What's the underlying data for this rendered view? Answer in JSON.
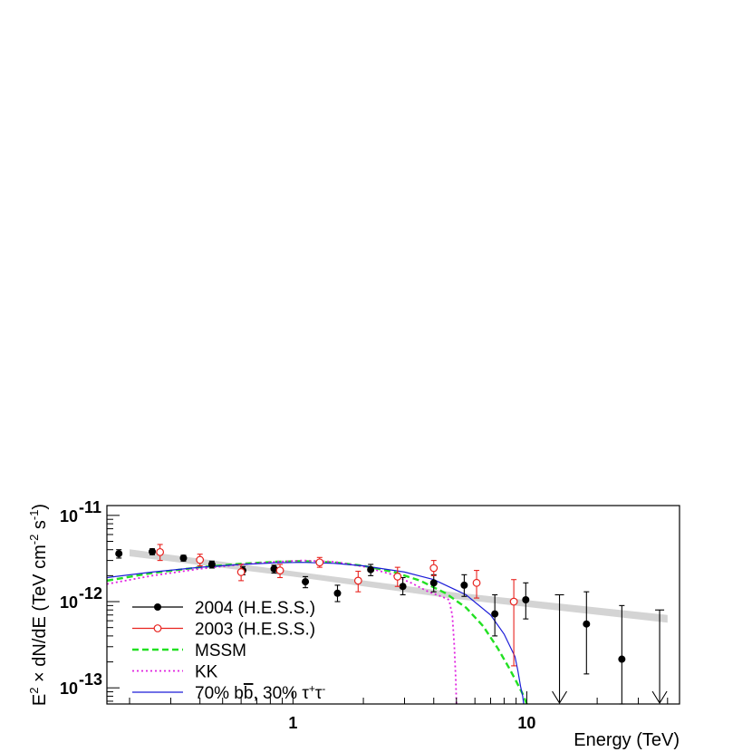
{
  "chart_data": {
    "type": "scatter",
    "title": "",
    "xlabel": "Energy (TeV)",
    "ylabel": "E² × dN/dE (TeV cm⁻² s⁻¹)",
    "xscale": "log",
    "yscale": "log",
    "xlim": [
      0.16,
      45
    ],
    "ylim": [
      6.5e-14,
      1.3e-11
    ],
    "x_tick_labels": [
      {
        "value": 1,
        "label": "1"
      },
      {
        "value": 10,
        "label": "10"
      }
    ],
    "y_tick_labels": [
      {
        "value": 1e-13,
        "base": "10",
        "exp": "-13"
      },
      {
        "value": 1e-12,
        "base": "10",
        "exp": "-12"
      },
      {
        "value": 1e-11,
        "base": "10",
        "exp": "-11"
      }
    ],
    "grid": false,
    "legend_position": "bottom-left",
    "series": [
      {
        "name": "2004 (H.E.S.S.)",
        "kind": "points",
        "color": "#000000",
        "marker": "filled-circle",
        "points": [
          {
            "x": 0.18,
            "y": 3.6e-12,
            "lo": 3.2e-12,
            "hi": 4e-12
          },
          {
            "x": 0.25,
            "y": 3.8e-12,
            "lo": 3.5e-12,
            "hi": 4.1e-12
          },
          {
            "x": 0.34,
            "y": 3.2e-12,
            "lo": 2.95e-12,
            "hi": 3.45e-12
          },
          {
            "x": 0.45,
            "y": 2.7e-12,
            "lo": 2.45e-12,
            "hi": 2.95e-12
          },
          {
            "x": 0.61,
            "y": 2.3e-12,
            "lo": 2.05e-12,
            "hi": 2.55e-12
          },
          {
            "x": 0.83,
            "y": 2.4e-12,
            "lo": 2.15e-12,
            "hi": 2.65e-12
          },
          {
            "x": 1.13,
            "y": 1.7e-12,
            "lo": 1.45e-12,
            "hi": 1.95e-12
          },
          {
            "x": 1.55,
            "y": 1.25e-12,
            "lo": 1e-12,
            "hi": 1.55e-12
          },
          {
            "x": 2.15,
            "y": 2.35e-12,
            "lo": 2e-12,
            "hi": 2.7e-12
          },
          {
            "x": 2.95,
            "y": 1.5e-12,
            "lo": 1.2e-12,
            "hi": 1.9e-12
          },
          {
            "x": 4.0,
            "y": 1.65e-12,
            "lo": 1.3e-12,
            "hi": 2.05e-12
          },
          {
            "x": 5.4,
            "y": 1.55e-12,
            "lo": 1.15e-12,
            "hi": 2.05e-12
          },
          {
            "x": 7.3,
            "y": 7.2e-13,
            "lo": 4e-13,
            "hi": 1.2e-12
          },
          {
            "x": 9.9,
            "y": 1.05e-12,
            "lo": 6.3e-13,
            "hi": 1.65e-12
          },
          {
            "x": 18.0,
            "y": 5.5e-13,
            "lo": 1.45e-13,
            "hi": 1.3e-12
          },
          {
            "x": 25.5,
            "y": 2.15e-13,
            "lo": 6.5e-14,
            "hi": 9e-13
          }
        ],
        "upper_limits": [
          {
            "x": 13.8,
            "y": 1.2e-12
          },
          {
            "x": 37.0,
            "y": 8e-13
          }
        ]
      },
      {
        "name": "2003 (H.E.S.S.)",
        "kind": "points",
        "color": "#e8231f",
        "marker": "open-circle",
        "points": [
          {
            "x": 0.27,
            "y": 3.75e-12,
            "lo": 3e-12,
            "hi": 4.6e-12
          },
          {
            "x": 0.4,
            "y": 3.05e-12,
            "lo": 2.6e-12,
            "hi": 3.55e-12
          },
          {
            "x": 0.6,
            "y": 2.2e-12,
            "lo": 1.75e-12,
            "hi": 2.7e-12
          },
          {
            "x": 0.88,
            "y": 2.3e-12,
            "lo": 1.9e-12,
            "hi": 2.7e-12
          },
          {
            "x": 1.3,
            "y": 2.85e-12,
            "lo": 2.5e-12,
            "hi": 3.25e-12
          },
          {
            "x": 1.9,
            "y": 1.75e-12,
            "lo": 1.3e-12,
            "hi": 2.25e-12
          },
          {
            "x": 2.8,
            "y": 1.95e-12,
            "lo": 1.5e-12,
            "hi": 2.5e-12
          },
          {
            "x": 4.0,
            "y": 2.45e-12,
            "lo": 2e-12,
            "hi": 3e-12
          },
          {
            "x": 6.1,
            "y": 1.65e-12,
            "lo": 1.1e-12,
            "hi": 2.3e-12
          },
          {
            "x": 8.8,
            "y": 1e-12,
            "lo": 1.8e-13,
            "hi": 1.8e-12
          }
        ]
      },
      {
        "name": "MSSM",
        "kind": "line",
        "color": "#22e022",
        "dash": "dashed",
        "points": [
          [
            0.16,
            1.75e-12
          ],
          [
            0.25,
            2.15e-12
          ],
          [
            0.4,
            2.5e-12
          ],
          [
            0.6,
            2.75e-12
          ],
          [
            0.85,
            2.9e-12
          ],
          [
            1.1,
            2.95e-12
          ],
          [
            1.5,
            2.85e-12
          ],
          [
            2.0,
            2.6e-12
          ],
          [
            2.7,
            2.2e-12
          ],
          [
            3.5,
            1.75e-12
          ],
          [
            4.5,
            1.25e-12
          ],
          [
            5.5,
            8.5e-13
          ],
          [
            6.5,
            5.2e-13
          ],
          [
            7.5,
            2.9e-13
          ],
          [
            8.4,
            1.7e-13
          ],
          [
            9.0,
            1.2e-13
          ],
          [
            9.6,
            8.5e-14
          ],
          [
            10.0,
            6.5e-14
          ]
        ]
      },
      {
        "name": "KK",
        "kind": "line",
        "color": "#e020e0",
        "dash": "dotted",
        "points": [
          [
            0.16,
            1.6e-12
          ],
          [
            0.25,
            2e-12
          ],
          [
            0.4,
            2.4e-12
          ],
          [
            0.6,
            2.7e-12
          ],
          [
            0.85,
            2.9e-12
          ],
          [
            1.1,
            3e-12
          ],
          [
            1.5,
            2.9e-12
          ],
          [
            2.0,
            2.55e-12
          ],
          [
            2.6,
            2.1e-12
          ],
          [
            3.2,
            1.65e-12
          ],
          [
            3.8,
            1.3e-12
          ],
          [
            4.3,
            1.15e-12
          ],
          [
            4.65,
            1.05e-12
          ],
          [
            4.8,
            7e-13
          ],
          [
            4.9,
            3e-13
          ],
          [
            4.97,
            1.2e-13
          ],
          [
            5.0,
            6.5e-14
          ]
        ]
      },
      {
        "name": "70% b̅b, 30% τ⁺τ⁻",
        "legend_label_parts": [
          "70% b",
          "b",
          ", 30% τ",
          "+",
          "τ",
          "-"
        ],
        "kind": "line",
        "color": "#1c1cd8",
        "dash": "solid",
        "points": [
          [
            0.16,
            1.9e-12
          ],
          [
            0.25,
            2.2e-12
          ],
          [
            0.4,
            2.5e-12
          ],
          [
            0.6,
            2.7e-12
          ],
          [
            0.85,
            2.82e-12
          ],
          [
            1.1,
            2.85e-12
          ],
          [
            1.5,
            2.78e-12
          ],
          [
            2.0,
            2.6e-12
          ],
          [
            3.0,
            2.2e-12
          ],
          [
            4.0,
            1.8e-12
          ],
          [
            5.5,
            1.2e-12
          ],
          [
            7.0,
            7e-13
          ],
          [
            8.0,
            4.2e-13
          ],
          [
            8.9,
            2.3e-13
          ],
          [
            9.15,
            1.6e-13
          ],
          [
            9.4,
            1.05e-13
          ],
          [
            9.6,
            8e-14
          ],
          [
            9.7,
            6.5e-14
          ]
        ]
      },
      {
        "name": "",
        "kind": "band",
        "color": "#d4d4d4",
        "points": [
          [
            0.2,
            4.05e-12,
            3.35e-12
          ],
          [
            1.0,
            2.25e-12,
            1.95e-12
          ],
          [
            5.0,
            1.27e-12,
            1.07e-12
          ],
          [
            40.0,
            7e-13,
            5.7e-13
          ]
        ]
      }
    ]
  }
}
